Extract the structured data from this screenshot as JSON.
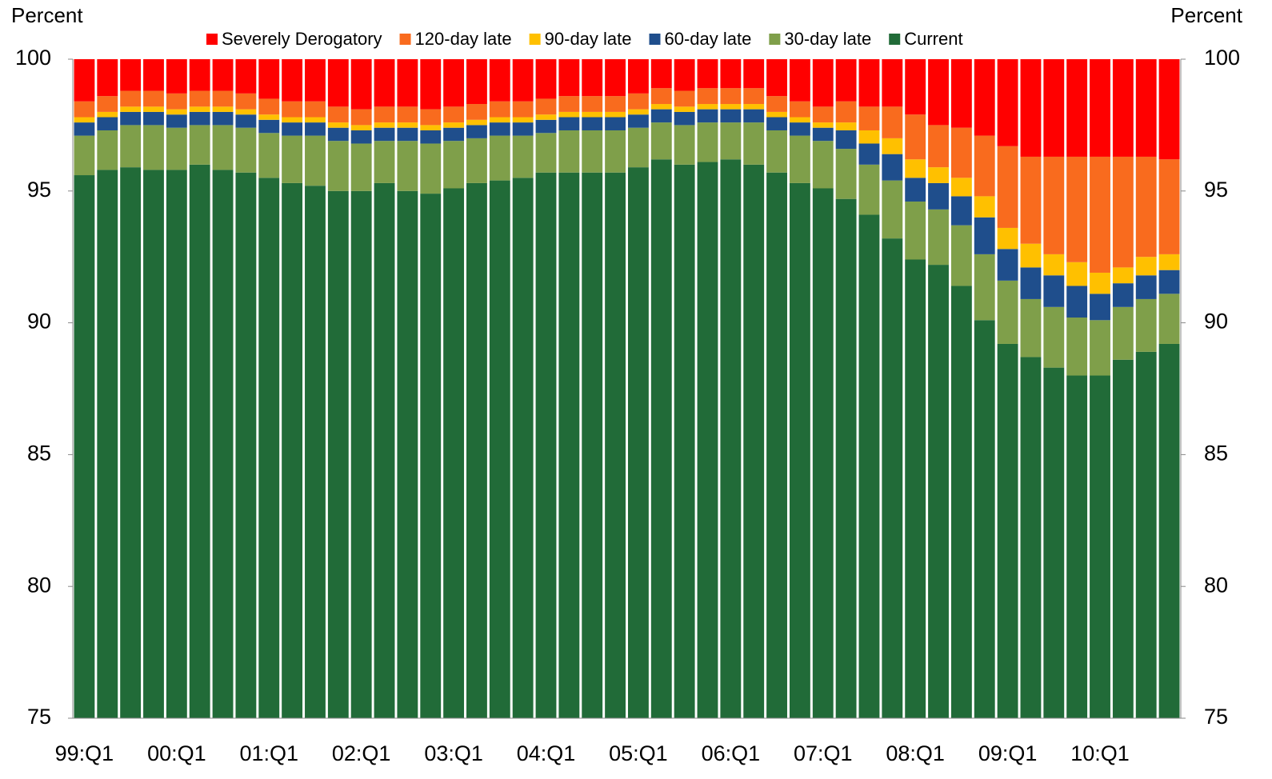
{
  "chart_data": {
    "type": "stacked_bar",
    "ylabel": "Percent",
    "y2label": "Percent",
    "categories": [
      "99:Q1",
      null,
      null,
      null,
      "00:Q1",
      null,
      null,
      null,
      "01:Q1",
      null,
      null,
      null,
      "02:Q1",
      null,
      null,
      null,
      "03:Q1",
      null,
      null,
      null,
      "04:Q1",
      null,
      null,
      null,
      "05:Q1",
      null,
      null,
      null,
      "06:Q1",
      null,
      null,
      null,
      "07:Q1",
      null,
      null,
      null,
      "08:Q1",
      null,
      null,
      null,
      "09:Q1",
      null,
      null,
      null,
      "10:Q1",
      null,
      null,
      null
    ],
    "series": [
      {
        "name": "Severely Derogatory",
        "color": "#ff0000",
        "values": [
          1.6,
          1.4,
          1.2,
          1.2,
          1.3,
          1.2,
          1.2,
          1.3,
          1.5,
          1.6,
          1.6,
          1.8,
          1.9,
          1.8,
          1.8,
          1.9,
          1.8,
          1.7,
          1.6,
          1.6,
          1.5,
          1.4,
          1.4,
          1.4,
          1.3,
          1.1,
          1.2,
          1.1,
          1.1,
          1.1,
          1.4,
          1.6,
          1.8,
          1.6,
          1.8,
          1.8,
          2.1,
          2.5,
          2.6,
          2.9,
          3.3,
          3.7,
          3.7,
          3.7,
          3.7,
          3.7,
          3.7,
          3.8
        ]
      },
      {
        "name": "120-day late",
        "color": "#f96b1e",
        "values": [
          0.6,
          0.6,
          0.6,
          0.6,
          0.6,
          0.6,
          0.6,
          0.6,
          0.6,
          0.6,
          0.6,
          0.6,
          0.6,
          0.6,
          0.6,
          0.6,
          0.6,
          0.6,
          0.6,
          0.6,
          0.6,
          0.6,
          0.6,
          0.6,
          0.6,
          0.6,
          0.6,
          0.6,
          0.6,
          0.6,
          0.6,
          0.6,
          0.6,
          0.8,
          0.9,
          1.2,
          1.7,
          1.6,
          1.9,
          2.3,
          3.1,
          3.3,
          3.7,
          4.0,
          4.4,
          4.2,
          3.8,
          3.6
        ]
      },
      {
        "name": "90-day late",
        "color": "#ffc000",
        "values": [
          0.2,
          0.2,
          0.2,
          0.2,
          0.2,
          0.2,
          0.2,
          0.2,
          0.2,
          0.2,
          0.2,
          0.2,
          0.2,
          0.2,
          0.2,
          0.2,
          0.2,
          0.2,
          0.2,
          0.2,
          0.2,
          0.2,
          0.2,
          0.2,
          0.2,
          0.2,
          0.2,
          0.2,
          0.2,
          0.2,
          0.2,
          0.2,
          0.2,
          0.3,
          0.5,
          0.6,
          0.7,
          0.6,
          0.7,
          0.8,
          0.8,
          0.9,
          0.8,
          0.9,
          0.8,
          0.6,
          0.7,
          0.6
        ]
      },
      {
        "name": "60-day late",
        "color": "#1f4e8c",
        "values": [
          0.5,
          0.5,
          0.5,
          0.5,
          0.5,
          0.5,
          0.5,
          0.5,
          0.5,
          0.5,
          0.5,
          0.5,
          0.5,
          0.5,
          0.5,
          0.5,
          0.5,
          0.5,
          0.5,
          0.5,
          0.5,
          0.5,
          0.5,
          0.5,
          0.5,
          0.5,
          0.5,
          0.5,
          0.5,
          0.5,
          0.5,
          0.5,
          0.5,
          0.7,
          0.8,
          1.0,
          0.9,
          1.0,
          1.1,
          1.4,
          1.2,
          1.2,
          1.2,
          1.2,
          1.0,
          0.9,
          0.9,
          0.9
        ]
      },
      {
        "name": "30-day late",
        "color": "#7f9f4a",
        "values": [
          1.5,
          1.5,
          1.6,
          1.7,
          1.6,
          1.5,
          1.7,
          1.7,
          1.7,
          1.8,
          1.9,
          1.9,
          1.8,
          1.6,
          1.9,
          1.9,
          1.8,
          1.7,
          1.7,
          1.6,
          1.5,
          1.6,
          1.6,
          1.6,
          1.5,
          1.4,
          1.5,
          1.5,
          1.4,
          1.6,
          1.6,
          1.8,
          1.8,
          1.9,
          1.9,
          2.2,
          2.2,
          2.1,
          2.3,
          2.5,
          2.4,
          2.2,
          2.3,
          2.2,
          2.1,
          2.0,
          2.0,
          1.9
        ]
      },
      {
        "name": "Current",
        "color": "#216b38",
        "values": [
          95.6,
          95.8,
          95.9,
          95.8,
          95.8,
          96.0,
          95.8,
          95.7,
          95.5,
          95.3,
          95.2,
          95.0,
          95.0,
          95.3,
          95.0,
          94.9,
          95.1,
          95.3,
          95.4,
          95.5,
          95.7,
          95.7,
          95.7,
          95.7,
          95.9,
          96.2,
          96.0,
          96.1,
          96.2,
          96.0,
          95.7,
          95.3,
          95.1,
          94.7,
          94.1,
          93.2,
          92.4,
          92.2,
          91.4,
          90.1,
          89.2,
          88.7,
          88.3,
          88.0,
          88.0,
          88.6,
          88.9,
          89.2
        ]
      }
    ],
    "ylim": [
      75,
      100
    ],
    "yticks": [
      75,
      80,
      85,
      90,
      95,
      100
    ],
    "y2lim": [
      75,
      100
    ],
    "y2ticks": [
      75,
      80,
      85,
      90,
      95,
      100
    ],
    "legend": "top"
  }
}
